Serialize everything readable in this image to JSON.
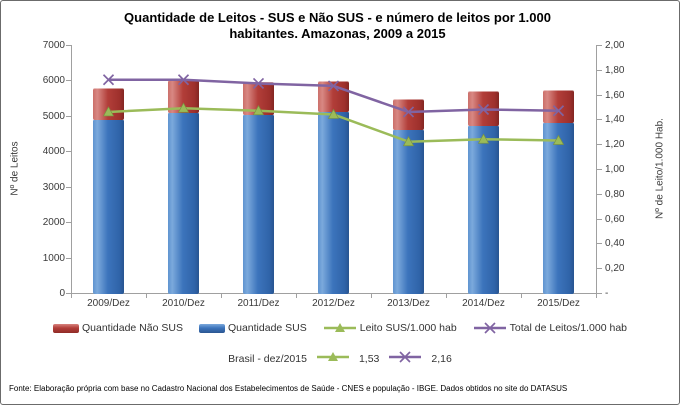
{
  "title": {
    "line1": "Quantidade de Leitos - SUS e Não SUS - e número de leitos por 1.000",
    "line2": "habitantes. Amazonas, 2009 a 2015"
  },
  "chart_data": {
    "type": "bar",
    "subtype": "stacked-bars-with-overlay-lines",
    "categories": [
      "2009/Dez",
      "2010/Dez",
      "2011/Dez",
      "2012/Dez",
      "2013/Dez",
      "2014/Dez",
      "2015/Dez"
    ],
    "series": [
      {
        "name": "Quantidade SUS",
        "type": "bar",
        "stack": "leitos",
        "axis": "left",
        "color": "#3C74BC",
        "values": [
          4900,
          5100,
          5060,
          5150,
          4640,
          4740,
          4840
        ]
      },
      {
        "name": "Quantidade Não SUS",
        "type": "bar",
        "stack": "leitos",
        "axis": "left",
        "color": "#B23E39",
        "values": [
          900,
          900,
          890,
          840,
          830,
          970,
          890
        ]
      },
      {
        "name": "Leito SUS/1.000 hab",
        "type": "line",
        "axis": "right",
        "marker": "triangle",
        "color": "#9BBB59",
        "values": [
          1.46,
          1.49,
          1.47,
          1.44,
          1.22,
          1.24,
          1.23
        ]
      },
      {
        "name": "Total de Leitos/1.000 hab",
        "type": "line",
        "axis": "right",
        "marker": "x",
        "color": "#8064A2",
        "values": [
          1.72,
          1.72,
          1.69,
          1.67,
          1.46,
          1.48,
          1.47
        ]
      }
    ],
    "left_axis": {
      "label": "Nº de Leitos",
      "min": 0,
      "max": 7000,
      "step": 1000,
      "ticks": [
        "7000",
        "6000",
        "5000",
        "4000",
        "3000",
        "2000",
        "1000",
        "0"
      ]
    },
    "right_axis": {
      "label": "Nº de Leito/1.000 Hab.",
      "min": 0,
      "max": 2,
      "step": 0.2,
      "ticks": [
        "2,00",
        "1,80",
        "1,60",
        "1,40",
        "1,20",
        "1,00",
        "0,80",
        "0,60",
        "0,40",
        "0,20",
        "-"
      ]
    },
    "grid": false,
    "legend_position": "bottom"
  },
  "legend": [
    {
      "label": "Quantidade Não SUS",
      "swatch": "bar-red"
    },
    {
      "label": "Quantidade SUS",
      "swatch": "bar-blue"
    },
    {
      "label": "Leito SUS/1.000 hab",
      "swatch": "line-triangle"
    },
    {
      "label": "Total de Leitos/1.000 hab",
      "swatch": "line-x"
    }
  ],
  "reference": {
    "label": "Brasil - dez/2015",
    "leito_sus_value": "1,53",
    "total_value": "2,16"
  },
  "footer": "Fonte: Elaboração própria com base no Cadastro Nacional dos Estabelecimentos de Saúde - CNES e população - IBGE. Dados obtidos no site do DATASUS"
}
